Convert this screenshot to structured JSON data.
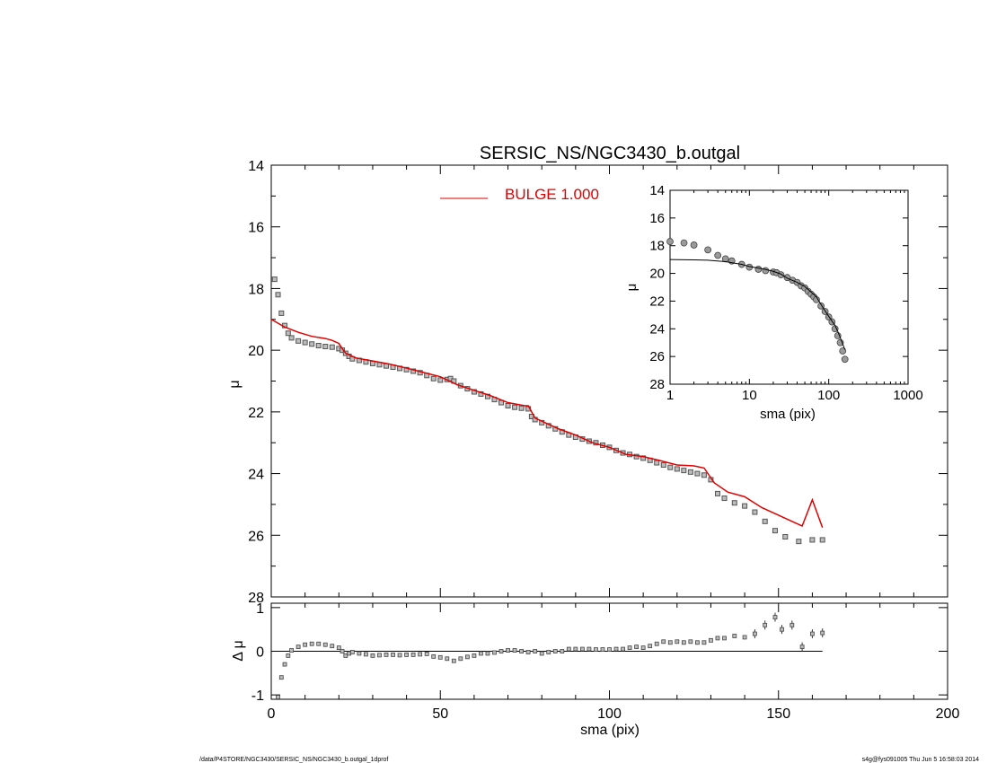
{
  "chart_data": [
    {
      "panel": "main",
      "type": "scatter",
      "title": "SERSIC_NS/NGC3430_b.outgal",
      "xlabel": "",
      "ylabel": "μ",
      "xlim": [
        0,
        200
      ],
      "ylim": [
        28,
        14
      ],
      "y_inverted": true,
      "yticks": [
        "14",
        "16",
        "18",
        "20",
        "22",
        "24",
        "26",
        "28"
      ],
      "legend": {
        "placement": "top-center",
        "entries": [
          {
            "label": "BULGE  1.000",
            "color": "#e00000"
          }
        ]
      },
      "series": [
        {
          "kind": "points",
          "x": [
            1,
            2,
            3,
            4,
            5,
            6,
            8,
            10,
            12,
            14,
            16,
            18,
            20,
            21,
            22,
            23,
            24,
            26,
            28,
            30,
            32,
            34,
            36,
            38,
            40,
            42,
            44,
            46,
            48,
            50,
            52,
            53,
            54,
            56,
            58,
            60,
            62,
            64,
            66,
            68,
            70,
            72,
            74,
            76,
            77,
            78,
            80,
            82,
            84,
            86,
            88,
            90,
            92,
            94,
            96,
            98,
            100,
            102,
            104,
            106,
            108,
            110,
            112,
            114,
            116,
            118,
            120,
            122,
            124,
            126,
            128,
            130,
            132,
            134,
            137,
            140,
            143,
            146,
            149,
            152,
            156,
            160,
            163
          ],
          "y": [
            17.7,
            18.2,
            18.8,
            19.2,
            19.45,
            19.6,
            19.7,
            19.75,
            19.8,
            19.85,
            19.88,
            19.9,
            19.95,
            20.0,
            20.1,
            20.2,
            20.28,
            20.33,
            20.38,
            20.43,
            20.47,
            20.51,
            20.55,
            20.59,
            20.63,
            20.68,
            20.73,
            20.82,
            20.92,
            20.97,
            20.95,
            20.92,
            21.0,
            21.15,
            21.25,
            21.35,
            21.42,
            21.5,
            21.6,
            21.7,
            21.8,
            21.85,
            21.88,
            21.9,
            22.15,
            22.25,
            22.35,
            22.45,
            22.55,
            22.65,
            22.75,
            22.82,
            22.88,
            22.95,
            23.0,
            23.08,
            23.15,
            23.25,
            23.33,
            23.38,
            23.45,
            23.5,
            23.57,
            23.65,
            23.72,
            23.8,
            23.85,
            23.9,
            23.95,
            24.0,
            24.05,
            24.2,
            24.65,
            24.8,
            24.95,
            25.05,
            25.25,
            25.55,
            25.85,
            26.05,
            26.2,
            26.15,
            26.15
          ]
        },
        {
          "name": "BULGE  1.000",
          "kind": "line",
          "color": "#e00000",
          "x": [
            0,
            4,
            8,
            12,
            16,
            18,
            20,
            21,
            22,
            25,
            30,
            35,
            40,
            45,
            50,
            55,
            60,
            65,
            70,
            75,
            76,
            78,
            80,
            85,
            90,
            95,
            100,
            105,
            110,
            115,
            120,
            125,
            128,
            131,
            135,
            140,
            145,
            150,
            155,
            157,
            160,
            163
          ],
          "y": [
            19.0,
            19.25,
            19.42,
            19.55,
            19.62,
            19.68,
            19.78,
            19.95,
            20.1,
            20.25,
            20.35,
            20.45,
            20.58,
            20.72,
            20.86,
            21.12,
            21.3,
            21.48,
            21.7,
            21.8,
            21.8,
            22.2,
            22.3,
            22.55,
            22.75,
            23.0,
            23.15,
            23.38,
            23.45,
            23.58,
            23.72,
            23.75,
            23.82,
            24.3,
            24.6,
            24.75,
            25.1,
            25.35,
            25.6,
            25.7,
            24.85,
            25.75
          ]
        }
      ]
    },
    {
      "panel": "inset",
      "type": "scatter",
      "title": "",
      "xlabel": "sma (pix)",
      "ylabel": "μ",
      "x_scale": "log",
      "xlim": [
        1,
        1000
      ],
      "ylim": [
        28,
        14
      ],
      "y_inverted": true,
      "xticks": [
        "1",
        "10",
        "100",
        "1000"
      ],
      "yticks": [
        "14",
        "16",
        "18",
        "20",
        "22",
        "24",
        "26",
        "28"
      ],
      "series": [
        {
          "kind": "points",
          "x": [
            1,
            1.5,
            2,
            3,
            4,
            5,
            6,
            8,
            10,
            13,
            16,
            20,
            22,
            25,
            30,
            35,
            40,
            45,
            50,
            55,
            60,
            65,
            70,
            80,
            90,
            100,
            110,
            120,
            130,
            140,
            150,
            160
          ],
          "y": [
            17.7,
            17.8,
            17.95,
            18.3,
            18.7,
            18.95,
            19.1,
            19.35,
            19.55,
            19.7,
            19.8,
            19.9,
            19.95,
            20.1,
            20.3,
            20.5,
            20.65,
            20.9,
            21.05,
            21.3,
            21.5,
            21.7,
            21.9,
            22.35,
            22.75,
            23.15,
            23.5,
            24.0,
            24.5,
            25.0,
            25.6,
            26.2
          ]
        },
        {
          "kind": "line",
          "color": "#000000",
          "x": [
            1,
            2,
            3,
            5,
            8,
            10,
            15,
            20,
            25,
            30,
            40,
            50,
            60,
            70,
            80,
            90,
            100,
            110,
            120,
            130,
            140,
            150,
            160
          ],
          "y": [
            19.0,
            19.02,
            19.05,
            19.15,
            19.35,
            19.5,
            19.68,
            19.85,
            20.05,
            20.35,
            20.65,
            20.95,
            21.35,
            21.7,
            22.25,
            22.7,
            23.1,
            23.45,
            23.75,
            24.2,
            24.65,
            25.1,
            25.5
          ]
        }
      ]
    },
    {
      "panel": "residual",
      "type": "scatter",
      "title": "",
      "xlabel": "sma (pix)",
      "ylabel": "Δ μ",
      "xlim": [
        0,
        200
      ],
      "ylim": [
        -1.1,
        1.1
      ],
      "xticks": [
        "0",
        "50",
        "100",
        "150",
        "200"
      ],
      "yticks": [
        "-1",
        "0",
        "1"
      ],
      "series": [
        {
          "kind": "points",
          "x": [
            2,
            3,
            4,
            5,
            6,
            8,
            10,
            12,
            14,
            16,
            18,
            20,
            21,
            22,
            23,
            24,
            26,
            28,
            30,
            32,
            34,
            36,
            38,
            40,
            42,
            44,
            46,
            48,
            50,
            52,
            54,
            56,
            58,
            60,
            62,
            64,
            66,
            68,
            70,
            72,
            74,
            76,
            78,
            80,
            82,
            84,
            86,
            88,
            90,
            92,
            94,
            96,
            98,
            100,
            102,
            104,
            106,
            108,
            110,
            112,
            114,
            116,
            118,
            120,
            122,
            124,
            126,
            128,
            130,
            132,
            134,
            137,
            140,
            143,
            146,
            149,
            151,
            154,
            157,
            160,
            163
          ],
          "y": [
            -1.05,
            -0.6,
            -0.3,
            -0.1,
            0.02,
            0.1,
            0.15,
            0.17,
            0.17,
            0.15,
            0.12,
            0.08,
            0.0,
            -0.1,
            -0.05,
            -0.02,
            -0.05,
            -0.07,
            -0.1,
            -0.09,
            -0.08,
            -0.08,
            -0.09,
            -0.08,
            -0.08,
            -0.07,
            -0.06,
            -0.12,
            -0.14,
            -0.17,
            -0.22,
            -0.17,
            -0.13,
            -0.1,
            -0.05,
            -0.05,
            -0.03,
            0.0,
            0.02,
            0.02,
            0.0,
            -0.02,
            0.0,
            -0.05,
            -0.02,
            0.0,
            0.0,
            0.05,
            0.05,
            0.05,
            0.05,
            0.04,
            0.04,
            0.04,
            0.05,
            0.05,
            0.08,
            0.1,
            0.08,
            0.12,
            0.17,
            0.22,
            0.2,
            0.22,
            0.2,
            0.22,
            0.2,
            0.2,
            0.25,
            0.3,
            0.3,
            0.35,
            0.32,
            0.4,
            0.6,
            0.78,
            0.5,
            0.6,
            0.1,
            0.4,
            0.42
          ]
        },
        {
          "kind": "line",
          "color": "#000000",
          "x": [
            0,
            163
          ],
          "y": [
            0,
            0
          ]
        }
      ]
    }
  ],
  "footer": {
    "path": "/data/P4STORE/NGC3430/SERSIC_NS/NGC3430_b.outgal_1dprof",
    "stamp": "s4g@fys091005  Thu Jun  5 16:58:03 2014"
  }
}
